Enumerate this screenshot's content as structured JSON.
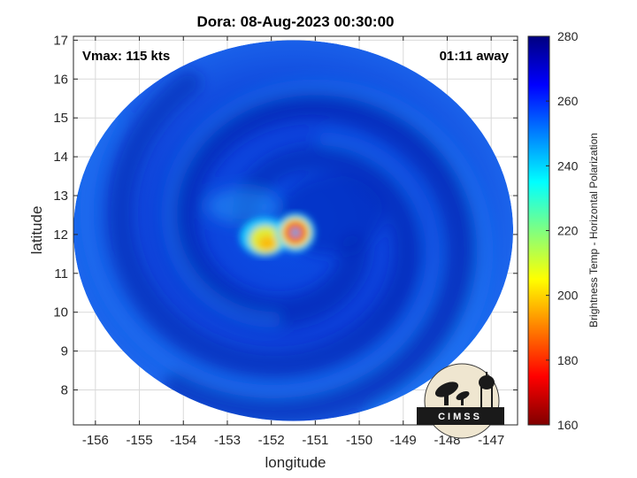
{
  "chart_data": {
    "type": "heatmap",
    "title": "Dora: 08-Aug-2023 00:30:00",
    "xlabel": "longitude",
    "ylabel": "latitude",
    "xlim": [
      -156.5,
      -146.4
    ],
    "ylim": [
      7.1,
      17.1
    ],
    "xticks": [
      -156,
      -155,
      -154,
      -153,
      -152,
      -151,
      -150,
      -149,
      -148,
      -147
    ],
    "xtick_labels": [
      "-156",
      "-155",
      "-154",
      "-153",
      "-152",
      "-151",
      "-150",
      "-149",
      "-148",
      "-147"
    ],
    "yticks": [
      8,
      9,
      10,
      11,
      12,
      13,
      14,
      15,
      16,
      17
    ],
    "ytick_labels": [
      "8",
      "9",
      "10",
      "11",
      "12",
      "13",
      "14",
      "15",
      "16",
      "17"
    ],
    "grid": true,
    "storm_center": {
      "lon": -151.45,
      "lat": 12.05
    },
    "swath_extent": {
      "lon": [
        -156.5,
        -146.5
      ],
      "lat": [
        7.2,
        17.0
      ]
    },
    "annotations": {
      "vmax": "Vmax: 115 kts",
      "time_away": "01:11 away"
    },
    "colorbar": {
      "label": "Brightness Temp - Horizontal Polarization",
      "range": [
        160,
        280
      ],
      "ticks": [
        160,
        180,
        200,
        220,
        240,
        260,
        280
      ],
      "tick_labels": [
        "160",
        "180",
        "200",
        "220",
        "240",
        "260",
        "280"
      ],
      "colormap": "jet"
    }
  },
  "logo": {
    "text": "CIMSS"
  },
  "colors": {
    "background": "#ffffff",
    "axes": "#262626",
    "grid": "#d9d9d9"
  }
}
